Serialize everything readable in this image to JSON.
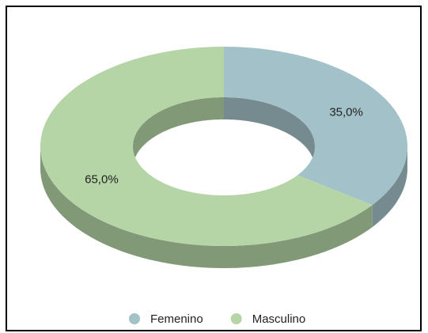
{
  "chart_data": {
    "type": "pie",
    "donut": true,
    "three_d": true,
    "categories": [
      "Femenino",
      "Masculino"
    ],
    "values": [
      35,
      65
    ],
    "value_labels": [
      "35,0%",
      "65,0%"
    ],
    "colors": [
      "#a3c1c8",
      "#b5d5a7"
    ],
    "legend": "bottom"
  }
}
